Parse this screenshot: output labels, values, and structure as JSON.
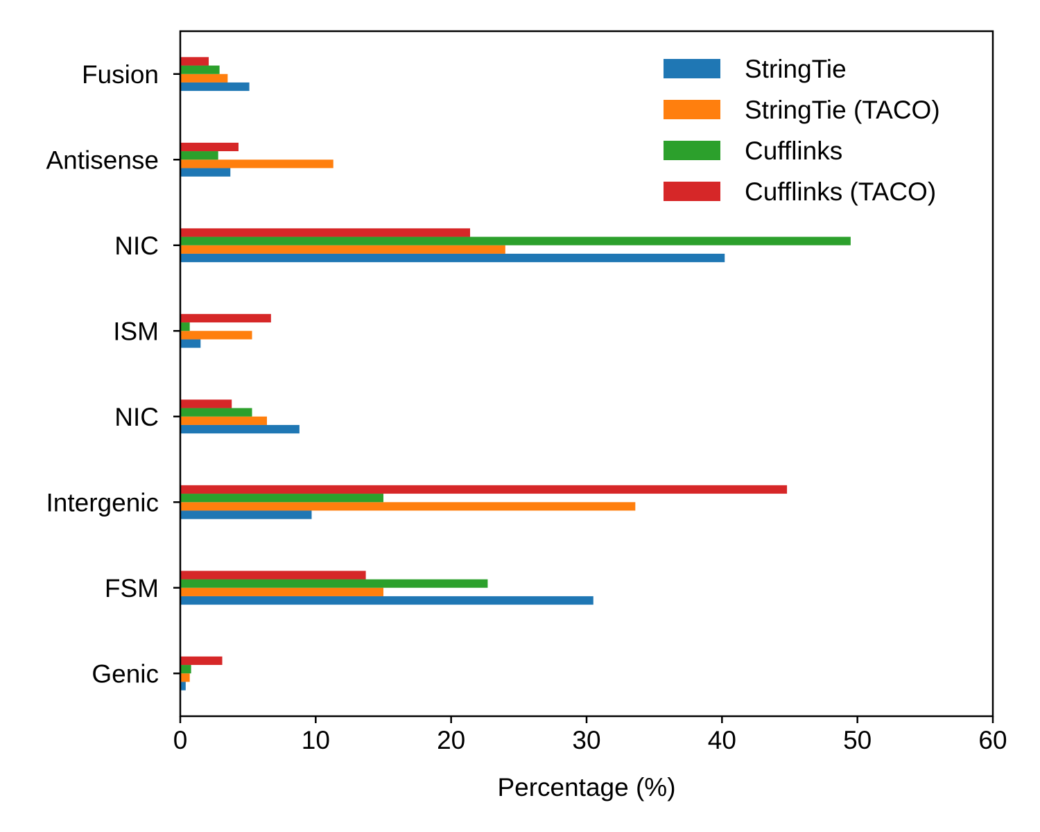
{
  "chart_data": {
    "type": "bar",
    "orientation": "horizontal",
    "title": "",
    "xlabel": "Percentage (%)",
    "ylabel": "",
    "xlim": [
      0,
      60
    ],
    "xticks": [
      0,
      10,
      20,
      30,
      40,
      50,
      60
    ],
    "grid": false,
    "legend_position": "top-right",
    "categories": [
      "Genic",
      "FSM",
      "Intergenic",
      "NIC",
      "ISM",
      "NIC",
      "Antisense",
      "Fusion"
    ],
    "series": [
      {
        "name": "StringTie",
        "color": "#1f77b4",
        "values": [
          0.4,
          30.5,
          9.7,
          8.8,
          1.5,
          40.2,
          3.7,
          5.1
        ]
      },
      {
        "name": "StringTie (TACO)",
        "color": "#ff7f0e",
        "values": [
          0.7,
          15.0,
          33.6,
          6.4,
          5.3,
          24.0,
          11.3,
          3.5
        ]
      },
      {
        "name": "Cufflinks",
        "color": "#2ca02c",
        "values": [
          0.8,
          22.7,
          15.0,
          5.3,
          0.7,
          49.5,
          2.8,
          2.9
        ]
      },
      {
        "name": "Cufflinks (TACO)",
        "color": "#d62728",
        "values": [
          3.1,
          13.7,
          44.8,
          3.8,
          6.7,
          21.4,
          4.3,
          2.1
        ]
      }
    ]
  }
}
